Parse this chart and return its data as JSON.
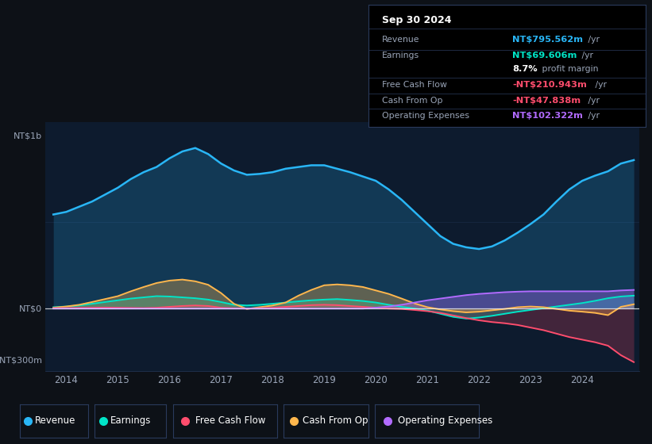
{
  "bg_color": "#0d1117",
  "plot_bg_color": "#0d1b2e",
  "grid_color": "#253a5c",
  "text_color": "#9aa5b8",
  "white": "#ffffff",
  "colors": {
    "revenue": "#29b6f6",
    "earnings": "#00e5c8",
    "free_cash_flow": "#ff4d6d",
    "cash_from_op": "#ffb74d",
    "operating_expenses": "#b26bff"
  },
  "ylim": [
    -360,
    1080
  ],
  "xlim_start": 2013.6,
  "xlim_end": 2025.1,
  "xtick_years": [
    2014,
    2015,
    2016,
    2017,
    2018,
    2019,
    2020,
    2021,
    2022,
    2023,
    2024
  ],
  "ylabel_top": "NT$1b",
  "ylabel_zero": "NT$0",
  "ylabel_bottom": "-NT$300m",
  "y_top_val": 1000,
  "y_zero_val": 0,
  "y_bottom_val": -300,
  "legend_labels": [
    "Revenue",
    "Earnings",
    "Free Cash Flow",
    "Cash From Op",
    "Operating Expenses"
  ],
  "info_title": "Sep 30 2024",
  "info_rows": [
    {
      "label": "Revenue",
      "value": "NT$795.562m",
      "unit": " /yr",
      "value_color": "#29b6f6"
    },
    {
      "label": "Earnings",
      "value": "NT$69.606m",
      "unit": " /yr",
      "value_color": "#00e5c8"
    },
    {
      "label": "",
      "value": "8.7%",
      "unit": " profit margin",
      "value_color": "#ffffff"
    },
    {
      "label": "Free Cash Flow",
      "value": "-NT$210.943m",
      "unit": " /yr",
      "value_color": "#ff4d6d"
    },
    {
      "label": "Cash From Op",
      "value": "-NT$47.838m",
      "unit": " /yr",
      "value_color": "#ff4d6d"
    },
    {
      "label": "Operating Expenses",
      "value": "NT$102.322m",
      "unit": " /yr",
      "value_color": "#b26bff"
    }
  ],
  "x_data": [
    2013.75,
    2014.0,
    2014.25,
    2014.5,
    2014.75,
    2015.0,
    2015.25,
    2015.5,
    2015.75,
    2016.0,
    2016.25,
    2016.5,
    2016.75,
    2017.0,
    2017.25,
    2017.5,
    2017.75,
    2018.0,
    2018.25,
    2018.5,
    2018.75,
    2019.0,
    2019.25,
    2019.5,
    2019.75,
    2020.0,
    2020.25,
    2020.5,
    2020.75,
    2021.0,
    2021.25,
    2021.5,
    2021.75,
    2022.0,
    2022.25,
    2022.5,
    2022.75,
    2023.0,
    2023.25,
    2023.5,
    2023.75,
    2024.0,
    2024.25,
    2024.5,
    2024.75,
    2025.0
  ],
  "revenue": [
    545,
    560,
    590,
    620,
    660,
    700,
    750,
    790,
    820,
    870,
    910,
    930,
    895,
    840,
    800,
    775,
    780,
    790,
    810,
    820,
    830,
    830,
    810,
    790,
    765,
    740,
    690,
    630,
    560,
    490,
    420,
    375,
    355,
    345,
    360,
    395,
    440,
    490,
    545,
    620,
    690,
    740,
    770,
    795,
    840,
    860
  ],
  "earnings": [
    8,
    12,
    18,
    28,
    38,
    48,
    58,
    65,
    72,
    70,
    65,
    60,
    52,
    38,
    22,
    18,
    22,
    28,
    35,
    42,
    48,
    52,
    55,
    50,
    44,
    35,
    22,
    10,
    0,
    -12,
    -30,
    -48,
    -58,
    -52,
    -42,
    -30,
    -18,
    -8,
    2,
    12,
    22,
    32,
    45,
    60,
    70,
    75
  ],
  "free_cash_flow": [
    2,
    3,
    4,
    5,
    6,
    5,
    4,
    3,
    5,
    10,
    15,
    18,
    15,
    5,
    2,
    0,
    2,
    5,
    10,
    15,
    20,
    22,
    20,
    15,
    10,
    5,
    0,
    -2,
    -8,
    -15,
    -25,
    -40,
    -55,
    -68,
    -78,
    -85,
    -95,
    -110,
    -125,
    -145,
    -165,
    -180,
    -195,
    -215,
    -270,
    -310
  ],
  "cash_from_op": [
    5,
    12,
    22,
    38,
    55,
    72,
    100,
    125,
    148,
    162,
    168,
    158,
    138,
    90,
    28,
    -2,
    8,
    18,
    35,
    75,
    108,
    135,
    140,
    135,
    125,
    105,
    85,
    58,
    30,
    8,
    -5,
    -15,
    -22,
    -18,
    -10,
    -2,
    8,
    12,
    8,
    -2,
    -12,
    -18,
    -25,
    -38,
    10,
    25
  ],
  "operating_expenses": [
    0,
    0,
    0,
    0,
    0,
    0,
    0,
    0,
    0,
    0,
    0,
    0,
    0,
    0,
    0,
    0,
    0,
    0,
    0,
    0,
    0,
    0,
    0,
    0,
    0,
    5,
    12,
    22,
    35,
    48,
    58,
    68,
    78,
    85,
    90,
    95,
    98,
    100,
    100,
    100,
    100,
    100,
    100,
    100,
    105,
    108
  ]
}
